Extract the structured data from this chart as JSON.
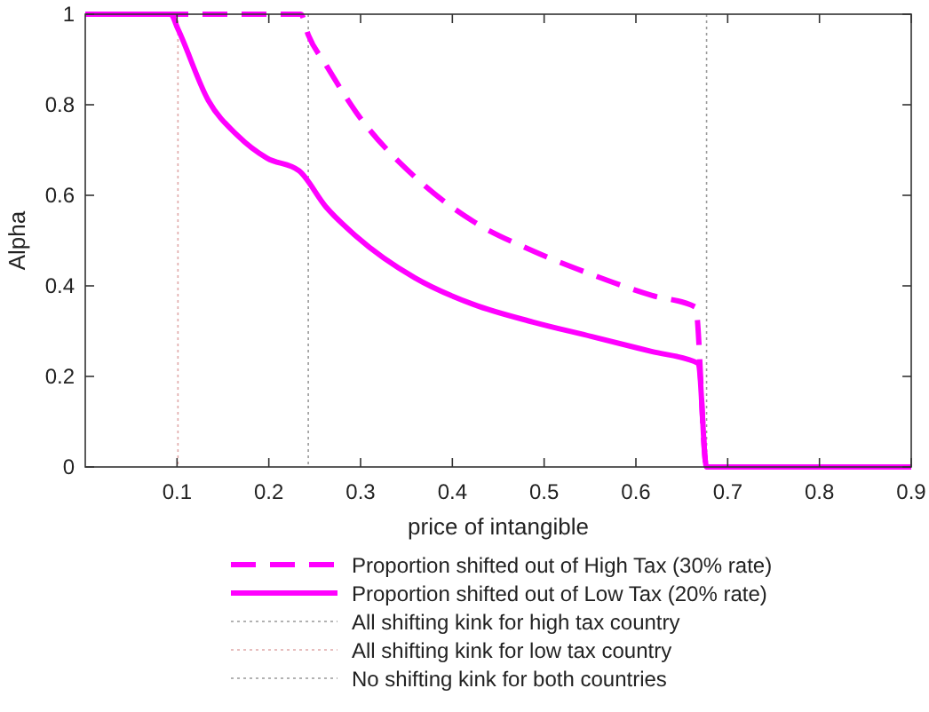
{
  "chart_data": {
    "type": "line",
    "xlabel": "price of intangible",
    "ylabel": "Alpha",
    "xlim": [
      0,
      0.9
    ],
    "ylim": [
      0,
      1
    ],
    "xticks": [
      0.1,
      0.2,
      0.3,
      0.4,
      0.5,
      0.6,
      0.7,
      0.8,
      0.9
    ],
    "yticks": [
      0,
      0.2,
      0.4,
      0.6,
      0.8,
      1
    ],
    "grid": false,
    "legend": "bottom",
    "series": [
      {
        "name": "Proportion shifted out of High Tax (30% rate)",
        "color": "#ff00ff",
        "line_style": "dashed",
        "x": [
          0,
          0.235,
          0.243,
          0.262,
          0.295,
          0.359,
          0.423,
          0.488,
          0.552,
          0.617,
          0.665,
          0.677,
          0.9
        ],
        "values": [
          1,
          1,
          0.954,
          0.889,
          0.784,
          0.641,
          0.542,
          0.477,
          0.425,
          0.379,
          0.353,
          0,
          0
        ]
      },
      {
        "name": "Proportion shifted out of Low Tax (20% rate)",
        "color": "#ff00ff",
        "line_style": "solid",
        "x": [
          0,
          0.093,
          0.101,
          0.134,
          0.166,
          0.198,
          0.233,
          0.262,
          0.295,
          0.359,
          0.423,
          0.488,
          0.552,
          0.617,
          0.668,
          0.677,
          0.9
        ],
        "values": [
          1,
          1,
          0.967,
          0.81,
          0.732,
          0.682,
          0.654,
          0.575,
          0.51,
          0.418,
          0.359,
          0.32,
          0.288,
          0.255,
          0.229,
          0,
          0
        ]
      }
    ],
    "ref_lines": [
      {
        "axis": "x",
        "value": 0.243,
        "label": "All shifting kink for high tax country",
        "color": "#999999",
        "line_style": "dotted"
      },
      {
        "axis": "x",
        "value": 0.101,
        "label": "All shifting kink for low tax country",
        "color": "#e0a8a8",
        "line_style": "dotted"
      },
      {
        "axis": "x",
        "value": 0.677,
        "label": "No shifting kink for both countries",
        "color": "#999999",
        "line_style": "dotted"
      }
    ]
  }
}
